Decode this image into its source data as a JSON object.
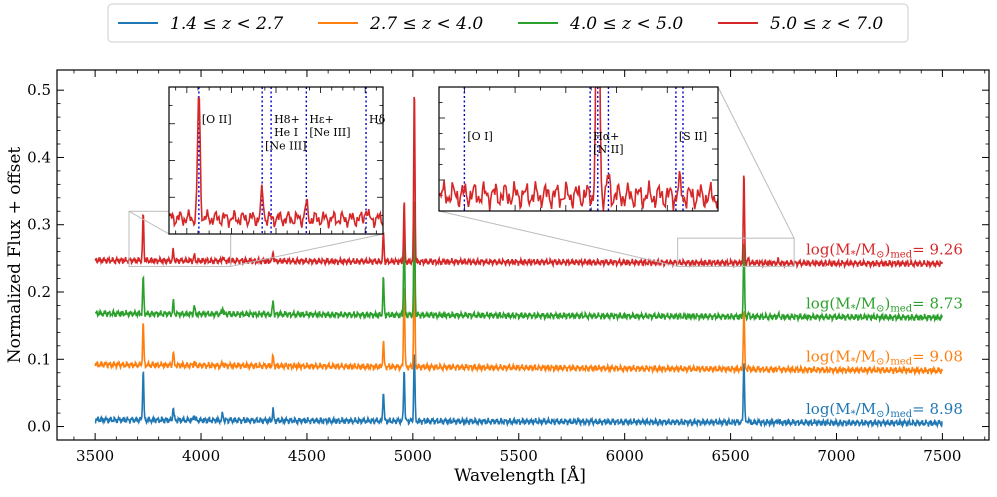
{
  "chart_data": {
    "type": "line",
    "title": "",
    "xlabel": "Wavelength [Å]",
    "ylabel": "Normalized Flux + offset",
    "xlim": [
      3320,
      7720
    ],
    "ylim": [
      -0.02,
      0.53
    ],
    "xticks": [
      3500,
      4000,
      4500,
      5000,
      5500,
      6000,
      6500,
      7000,
      7500
    ],
    "xtick_labels": [
      "3500",
      "4000",
      "4500",
      "5000",
      "5500",
      "6000",
      "6500",
      "7000",
      "7500"
    ],
    "yticks": [
      0.0,
      0.1,
      0.2,
      0.3,
      0.4,
      0.5
    ],
    "ytick_labels": [
      "0.0",
      "0.1",
      "0.2",
      "0.3",
      "0.4",
      "0.5"
    ],
    "legend": {
      "placement": "top-center",
      "entries": [
        "1.4 ≤ z < 2.7",
        "2.7 ≤ z < 4.0",
        "4.0 ≤ z < 5.0",
        "5.0 ≤ z < 7.0"
      ]
    },
    "series": [
      {
        "name": "1.4 ≤ z < 2.7",
        "color": "#1f77b4",
        "offset_start": 0.01,
        "offset_end": 0.005,
        "mass_prefix": "log(M",
        "mass_sub_star": "*",
        "mass_slash": "/M",
        "mass_sub_sun": "⊙",
        "mass_close": ")",
        "mass_sub_med": "med",
        "mass_value": "= 8.98",
        "lines": [
          [
            3727,
            0.075
          ],
          [
            3869,
            0.02
          ],
          [
            3968,
            0.008
          ],
          [
            4102,
            0.01
          ],
          [
            4340,
            0.015
          ],
          [
            4861,
            0.045
          ],
          [
            4959,
            0.078
          ],
          [
            5007,
            0.105
          ],
          [
            6563,
            0.095
          ],
          [
            6584,
            0.005
          ],
          [
            6724,
            0.004
          ]
        ]
      },
      {
        "name": "2.7 ≤ z < 4.0",
        "color": "#ff7f0e",
        "offset_start": 0.092,
        "offset_end": 0.083,
        "mass_prefix": "log(M",
        "mass_sub_star": "*",
        "mass_slash": "/M",
        "mass_sub_sun": "⊙",
        "mass_close": ")",
        "mass_sub_med": "med",
        "mass_value": "= 9.08",
        "lines": [
          [
            3727,
            0.063
          ],
          [
            3869,
            0.02
          ],
          [
            3968,
            0.006
          ],
          [
            4102,
            0.005
          ],
          [
            4340,
            0.014
          ],
          [
            4861,
            0.038
          ],
          [
            4959,
            0.125
          ],
          [
            5007,
            0.175
          ],
          [
            6563,
            0.092
          ],
          [
            6584,
            0.004
          ],
          [
            6724,
            0.003
          ]
        ]
      },
      {
        "name": "4.0 ≤ z < 5.0",
        "color": "#2ca02c",
        "offset_start": 0.168,
        "offset_end": 0.162,
        "mass_prefix": "log(M",
        "mass_sub_star": "*",
        "mass_slash": "/M",
        "mass_sub_sun": "⊙",
        "mass_close": ")",
        "mass_sub_med": "med",
        "mass_value": "= 8.73",
        "lines": [
          [
            3727,
            0.055
          ],
          [
            3869,
            0.018
          ],
          [
            3968,
            0.012
          ],
          [
            4102,
            0.01
          ],
          [
            4340,
            0.02
          ],
          [
            4861,
            0.055
          ],
          [
            4959,
            0.125
          ],
          [
            5007,
            0.175
          ],
          [
            6563,
            0.11
          ],
          [
            6584,
            0.004
          ],
          [
            6724,
            0.003
          ]
        ]
      },
      {
        "name": "5.0 ≤ z < 7.0",
        "color": "#d62728",
        "offset_start": 0.247,
        "offset_end": 0.242,
        "mass_prefix": "log(M",
        "mass_sub_star": "*",
        "mass_slash": "/M",
        "mass_sub_sun": "⊙",
        "mass_close": ")",
        "mass_sub_med": "med",
        "mass_value": "= 9.26",
        "lines": [
          [
            3727,
            0.07
          ],
          [
            3869,
            0.015
          ],
          [
            3968,
            0.008
          ],
          [
            4102,
            0.006
          ],
          [
            4340,
            0.014
          ],
          [
            4861,
            0.042
          ],
          [
            4959,
            0.088
          ],
          [
            5007,
            0.26
          ],
          [
            6563,
            0.133
          ],
          [
            6584,
            0.006
          ],
          [
            6724,
            0.004
          ]
        ]
      }
    ],
    "insets": [
      {
        "name": "blue-region",
        "xlim": [
          3660,
          4140
        ],
        "ylim": [
          0.238,
          0.32
        ],
        "vlines": [
          3727,
          3869,
          3889,
          3968,
          4102
        ],
        "labels": [
          {
            "x": 3727,
            "y": 0.3,
            "lines": [
              "[O II]"
            ]
          },
          {
            "x": 3869,
            "y": 0.285,
            "lines": [
              "[Ne III]"
            ]
          },
          {
            "x": 3889,
            "y": 0.3,
            "lines": [
              "H8+",
              "He I"
            ]
          },
          {
            "x": 3968,
            "y": 0.3,
            "lines": [
              "Hε+",
              "[Ne III]"
            ]
          },
          {
            "x": 4102,
            "y": 0.3,
            "lines": [
              "Hδ"
            ]
          }
        ]
      },
      {
        "name": "red-region",
        "xlim": [
          6250,
          6800
        ],
        "ylim": [
          0.238,
          0.28
        ],
        "vlines": [
          6300,
          6548,
          6563,
          6584,
          6717,
          6731
        ],
        "labels": [
          {
            "x": 6300,
            "y": 0.262,
            "lines": [
              "[O I]"
            ]
          },
          {
            "x": 6548,
            "y": 0.262,
            "lines": [
              "Hα+",
              "[N II]"
            ]
          },
          {
            "x": 6717,
            "y": 0.262,
            "lines": [
              "[S II]"
            ]
          }
        ]
      }
    ]
  }
}
